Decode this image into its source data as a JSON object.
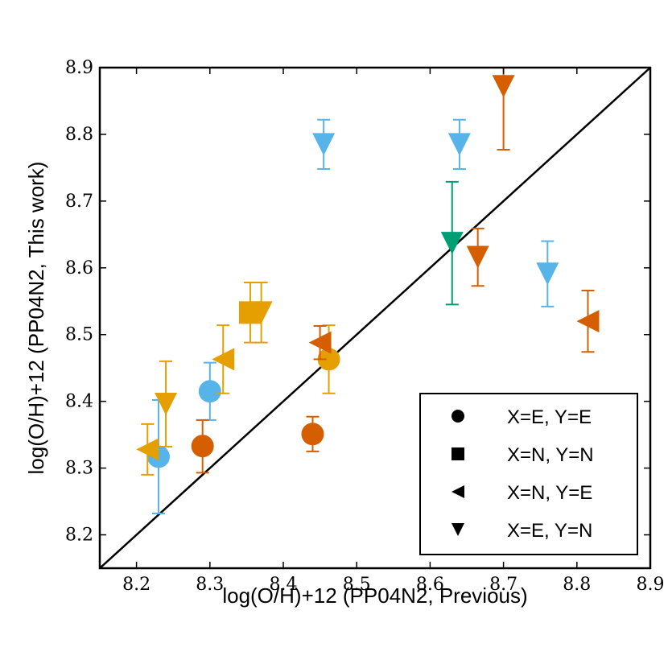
{
  "chart_data": {
    "type": "scatter",
    "xlabel": "log(O/H)+12 (PP04N2, Previous)",
    "ylabel": "log(O/H)+12 (PP04N2, This work)",
    "xlim": [
      8.15,
      8.9
    ],
    "ylim": [
      8.15,
      8.9
    ],
    "xticks": [
      "8.2",
      "8.3",
      "8.4",
      "8.5",
      "8.6",
      "8.7",
      "8.8",
      "8.9"
    ],
    "yticks": [
      "8.2",
      "8.3",
      "8.4",
      "8.5",
      "8.6",
      "8.7",
      "8.8",
      "8.9"
    ],
    "one_to_one_line": true,
    "legend_position": "lower-right",
    "legend": [
      {
        "marker": "circle",
        "label": "X=E, Y=E"
      },
      {
        "marker": "square",
        "label": "X=N, Y=N"
      },
      {
        "marker": "triangle-left",
        "label": "X=N, Y=E"
      },
      {
        "marker": "triangle-down",
        "label": "X=E, Y=N"
      }
    ],
    "colors": {
      "blue": "#56b4e9",
      "orange": "#e69f00",
      "vermillion": "#d55e00",
      "green": "#009e73"
    },
    "points": [
      {
        "x": 8.23,
        "y": 8.317,
        "marker": "circle",
        "color": "blue",
        "ylow": 8.232,
        "yhigh": 8.402
      },
      {
        "x": 8.3,
        "y": 8.415,
        "marker": "circle",
        "color": "blue",
        "ylow": 8.372,
        "yhigh": 8.458
      },
      {
        "x": 8.29,
        "y": 8.333,
        "marker": "circle",
        "color": "vermillion",
        "ylow": 8.293,
        "yhigh": 8.372
      },
      {
        "x": 8.44,
        "y": 8.351,
        "marker": "circle",
        "color": "vermillion",
        "ylow": 8.325,
        "yhigh": 8.377
      },
      {
        "x": 8.462,
        "y": 8.463,
        "marker": "circle",
        "color": "orange",
        "ylow": 8.412,
        "yhigh": 8.514
      },
      {
        "x": 8.355,
        "y": 8.533,
        "marker": "square",
        "color": "orange",
        "ylow": 8.488,
        "yhigh": 8.578
      },
      {
        "x": 8.215,
        "y": 8.328,
        "marker": "triangle-left",
        "color": "orange",
        "ylow": 8.29,
        "yhigh": 8.366
      },
      {
        "x": 8.318,
        "y": 8.463,
        "marker": "triangle-left",
        "color": "orange",
        "ylow": 8.412,
        "yhigh": 8.514
      },
      {
        "x": 8.45,
        "y": 8.488,
        "marker": "triangle-left",
        "color": "vermillion",
        "ylow": 8.463,
        "yhigh": 8.513
      },
      {
        "x": 8.815,
        "y": 8.52,
        "marker": "triangle-left",
        "color": "vermillion",
        "ylow": 8.474,
        "yhigh": 8.566
      },
      {
        "x": 8.24,
        "y": 8.396,
        "marker": "triangle-down",
        "color": "orange",
        "ylow": 8.332,
        "yhigh": 8.46
      },
      {
        "x": 8.37,
        "y": 8.533,
        "marker": "triangle-down",
        "color": "orange",
        "ylow": 8.488,
        "yhigh": 8.578
      },
      {
        "x": 8.455,
        "y": 8.785,
        "marker": "triangle-down",
        "color": "blue",
        "ylow": 8.748,
        "yhigh": 8.822
      },
      {
        "x": 8.64,
        "y": 8.785,
        "marker": "triangle-down",
        "color": "blue",
        "ylow": 8.748,
        "yhigh": 8.822
      },
      {
        "x": 8.76,
        "y": 8.591,
        "marker": "triangle-down",
        "color": "blue",
        "ylow": 8.542,
        "yhigh": 8.64
      },
      {
        "x": 8.63,
        "y": 8.637,
        "marker": "triangle-down",
        "color": "green",
        "ylow": 8.545,
        "yhigh": 8.729
      },
      {
        "x": 8.665,
        "y": 8.616,
        "marker": "triangle-down",
        "color": "vermillion",
        "ylow": 8.573,
        "yhigh": 8.659
      },
      {
        "x": 8.7,
        "y": 8.872,
        "marker": "triangle-down",
        "color": "vermillion",
        "ylow": 8.777,
        "yhigh": 8.9
      }
    ]
  }
}
